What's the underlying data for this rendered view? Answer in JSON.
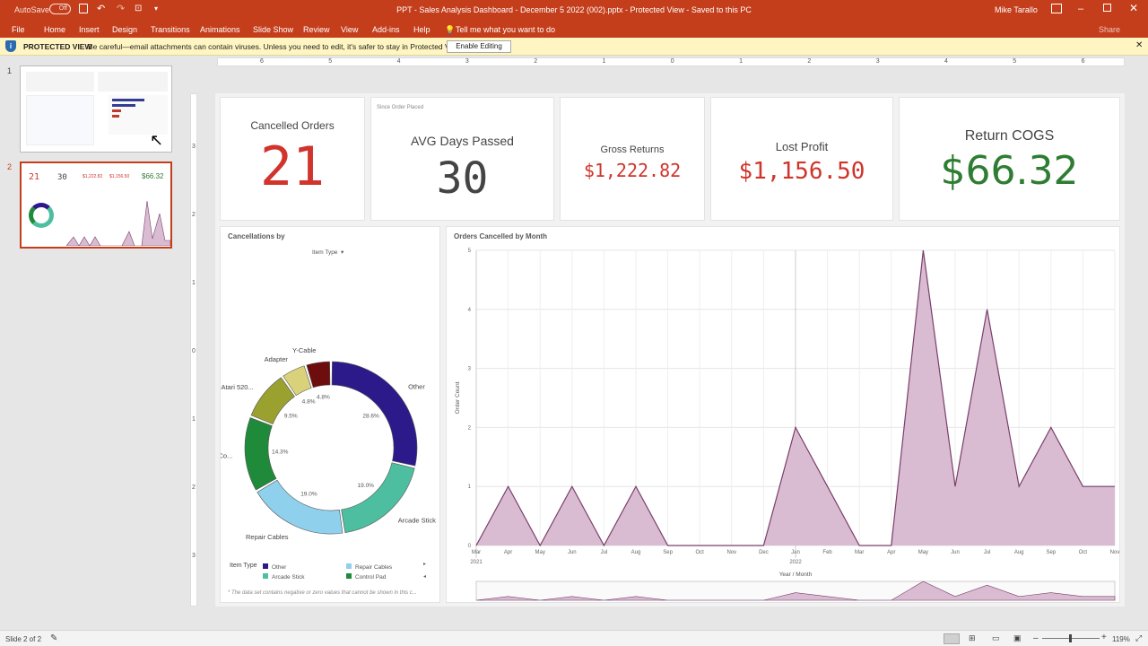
{
  "window": {
    "autosave_label": "AutoSave",
    "autosave_state": "Off",
    "title": "PPT - Sales Analysis Dashboard - December 5 2022 (002).pptx  -  Protected View  -  Saved to this PC",
    "user": "Mike Tarallo"
  },
  "ribbon": {
    "tabs": [
      "File",
      "Home",
      "Insert",
      "Design",
      "Transitions",
      "Animations",
      "Slide Show",
      "Review",
      "View",
      "Add-ins",
      "Help"
    ],
    "tell_me": "Tell me what you want to do",
    "share": "Share"
  },
  "protected_view": {
    "label": "PROTECTED VIEW",
    "message": "Be careful—email attachments can contain viruses. Unless you need to edit, it's safer to stay in Protected View.",
    "button": "Enable Editing"
  },
  "thumbnails": [
    {
      "number": "1"
    },
    {
      "number": "2",
      "kpis": [
        "21",
        "30",
        "$1,222.82",
        "$1,156.50",
        "$66.32"
      ]
    }
  ],
  "ruler": {
    "top_numbers": [
      "6",
      "5",
      "4",
      "3",
      "2",
      "1",
      "0",
      "1",
      "2",
      "3",
      "4",
      "5",
      "6"
    ],
    "left_numbers": [
      "3",
      "2",
      "1",
      "0",
      "1",
      "2",
      "3"
    ]
  },
  "kpis": [
    {
      "label": "Cancelled Orders",
      "value": "21",
      "color": "#d0342c"
    },
    {
      "label": "AVG Days Passed",
      "value": "30",
      "sub": "Since Order Placed",
      "color": "#444444"
    },
    {
      "label": "Gross Returns",
      "value": "$1,222.82",
      "color": "#d0342c"
    },
    {
      "label": "Lost Profit",
      "value": "$1,156.50",
      "color": "#d0342c"
    },
    {
      "label": "Return COGS",
      "value": "$66.32",
      "color": "#2e7d32"
    }
  ],
  "donut": {
    "title": "Cancellations by",
    "dropdown": "Item Type",
    "segments": [
      {
        "name": "Other",
        "pct": "28.6%",
        "value": 28.6,
        "color": "#2c1a8a"
      },
      {
        "name": "Arcade Stick",
        "pct": "19.0%",
        "value": 19.0,
        "color": "#4dbfa0"
      },
      {
        "name": "Repair Cables",
        "pct": "19.0%",
        "value": 19.0,
        "color": "#8fd0ec"
      },
      {
        "name": "Co...",
        "pct": "14.3%",
        "value": 14.3,
        "color": "#1f8a3a"
      },
      {
        "name": "Atari 520...",
        "pct": "9.5%",
        "value": 9.5,
        "color": "#9aa12f"
      },
      {
        "name": "Adapter",
        "pct": "4.8%",
        "value": 4.8,
        "color": "#d9d27a"
      },
      {
        "name": "Y-Cable",
        "pct": "4.8%",
        "value": 4.8,
        "color": "#6d0d0d"
      }
    ],
    "legend_title": "Item Type",
    "legend": [
      {
        "name": "Other",
        "color": "#2c1a8a"
      },
      {
        "name": "Repair Cables",
        "color": "#8fd0ec"
      },
      {
        "name": "Arcade Stick",
        "color": "#4dbfa0"
      },
      {
        "name": "Control Pad",
        "color": "#1f8a3a"
      }
    ],
    "footnote": "* The data set contains negative or zero values that cannot be shown in this c..."
  },
  "chart_data": {
    "type": "area",
    "title": "Orders Cancelled by Month",
    "xlabel": "Year / Month",
    "ylabel": "Order Count",
    "ylim": [
      0,
      5
    ],
    "yticks": [
      "0",
      "1",
      "2",
      "3",
      "4",
      "5"
    ],
    "categories": [
      "Mar",
      "Apr",
      "May",
      "Jun",
      "Jul",
      "Aug",
      "Sep",
      "Oct",
      "Nov",
      "Dec",
      "Jan",
      "Feb",
      "Mar",
      "Apr",
      "May",
      "Jun",
      "Jul",
      "Aug",
      "Sep",
      "Oct",
      "Nov"
    ],
    "years": [
      {
        "label": "2021",
        "at": 0
      },
      {
        "label": "2022",
        "at": 10
      }
    ],
    "values": [
      0,
      1,
      0,
      1,
      0,
      1,
      0,
      0,
      0,
      0,
      2,
      1,
      0,
      0,
      5,
      1,
      4,
      1,
      2,
      1,
      1
    ],
    "fill": "#d9bcd2",
    "stroke": "#7a3e6a",
    "grid": true
  },
  "status": {
    "slide": "Slide 2 of 2",
    "zoom": "119%"
  }
}
